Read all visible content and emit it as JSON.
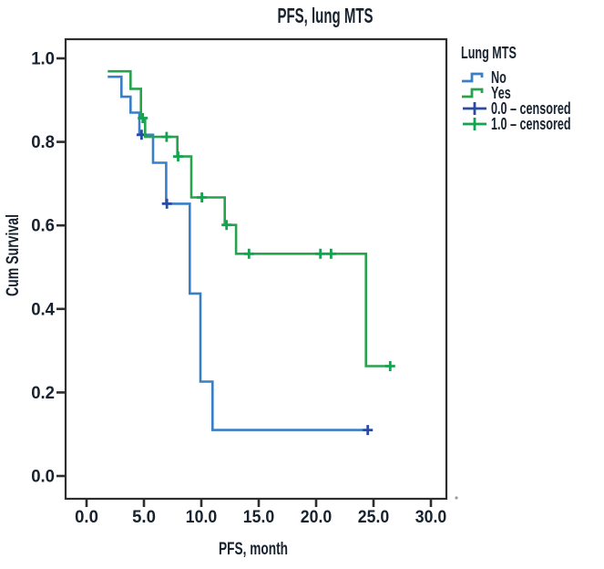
{
  "title": "PFS, lung MTS",
  "axes": {
    "x_label": "PFS, month",
    "y_label": "Cum Survival",
    "x_ticks": [
      "0.0",
      "5.0",
      "10.0",
      "15.0",
      "20.0",
      "25.0",
      "30.0"
    ],
    "y_ticks": [
      "0.0",
      "0.2",
      "0.4",
      "0.6",
      "0.8",
      "1.0"
    ]
  },
  "legend": {
    "title": "Lung MTS",
    "items": [
      {
        "label": "No",
        "marker": "step-line",
        "color": "#3a7ec5"
      },
      {
        "label": "Yes",
        "marker": "step-line",
        "color": "#27a24d"
      },
      {
        "label": "0.0 – censored",
        "marker": "plus-cross",
        "color": "#2b4ba0"
      },
      {
        "label": "1.0 – censored",
        "marker": "plus-cross",
        "color": "#12a44e"
      }
    ]
  },
  "chart_data": {
    "type": "line",
    "subtype": "kaplan-meier-step",
    "title": "PFS, lung MTS",
    "xlabel": "PFS, month",
    "ylabel": "Cum Survival",
    "xlim": [
      0,
      30
    ],
    "ylim": [
      0,
      1.0
    ],
    "x_tick_values": [
      0,
      5,
      10,
      15,
      20,
      25,
      30
    ],
    "y_tick_values": [
      0,
      0.2,
      0.4,
      0.6,
      0.8,
      1.0
    ],
    "grid": false,
    "legend_position": "right-top",
    "series": [
      {
        "name": "No",
        "group_code": "0.0",
        "color": "#3a7ec5",
        "censor_color": "#2b4ba0",
        "steps": [
          [
            1.85,
            0.956
          ],
          [
            3.04,
            0.908
          ],
          [
            3.83,
            0.87
          ],
          [
            4.6,
            0.817
          ],
          [
            5.79,
            0.75
          ],
          [
            6.94,
            0.652
          ],
          [
            8.99,
            0.437
          ],
          [
            9.92,
            0.226
          ],
          [
            10.98,
            0.11
          ]
        ],
        "end_time": 24.5,
        "censored": [
          [
            4.79,
            0.817
          ],
          [
            7.0,
            0.652
          ],
          [
            24.5,
            0.11
          ]
        ]
      },
      {
        "name": "Yes",
        "group_code": "1.0",
        "color": "#27a24d",
        "censor_color": "#12a44e",
        "steps": [
          [
            1.85,
            0.969
          ],
          [
            3.83,
            0.927
          ],
          [
            4.74,
            0.857
          ],
          [
            5.1,
            0.812
          ],
          [
            7.91,
            0.765
          ],
          [
            9.13,
            0.667
          ],
          [
            12.04,
            0.601
          ],
          [
            13.02,
            0.532
          ],
          [
            24.34,
            0.263
          ]
        ],
        "end_time": 26.5,
        "censored": [
          [
            4.9,
            0.857
          ],
          [
            6.98,
            0.812
          ],
          [
            7.98,
            0.765
          ],
          [
            10.05,
            0.667
          ],
          [
            12.2,
            0.601
          ],
          [
            14.15,
            0.532
          ],
          [
            20.37,
            0.532
          ],
          [
            21.3,
            0.532
          ],
          [
            26.45,
            0.263
          ]
        ]
      }
    ]
  }
}
